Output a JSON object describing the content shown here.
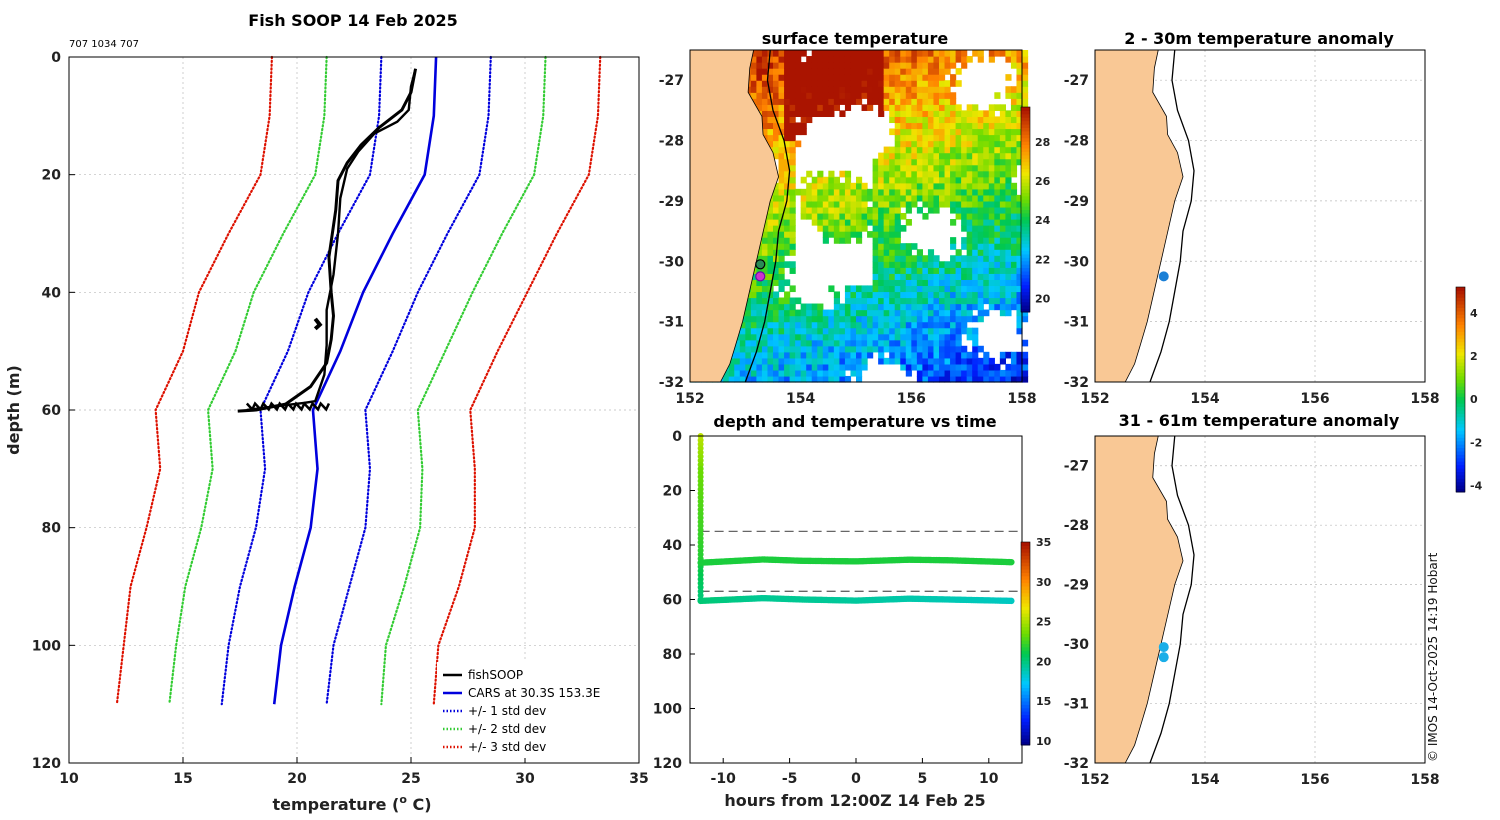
{
  "figure": {
    "title": "Fish SOOP 14 Feb 2025",
    "id_text": "707 1034 707",
    "copyright": "© IMOS 14-Oct-2025 14:19 Hobart"
  },
  "colors": {
    "land": "#f9c895",
    "black": "#000000",
    "blue": "#0000dd",
    "green": "#33cc33",
    "red": "#dd1100",
    "grid": "#cccccc"
  },
  "chart_data": [
    {
      "id": "profile",
      "type": "line",
      "title": "Fish SOOP 14 Feb 2025",
      "xlabel": "temperature (°C)",
      "xlabel_main": "temperature (",
      "xlabel_sup": "o",
      "xlabel_end": " C)",
      "ylabel": "depth (m)",
      "xlim": [
        10,
        35
      ],
      "ylim": [
        0,
        120
      ],
      "y_reversed": true,
      "xticks": [
        10,
        15,
        20,
        25,
        30,
        35
      ],
      "yticks": [
        0,
        20,
        40,
        60,
        80,
        100,
        120
      ],
      "grid": true,
      "legend_position": "bottom-right",
      "legend": [
        {
          "label": "fishSOOP",
          "color": "#000000",
          "style": "solid"
        },
        {
          "label": "CARS at 30.3S 153.3E",
          "color": "#0000dd",
          "style": "solid"
        },
        {
          "label": "+/- 1 std dev",
          "color": "#0000dd",
          "style": "dotted"
        },
        {
          "label": "+/- 2 std dev",
          "color": "#33cc33",
          "style": "dotted"
        },
        {
          "label": "+/- 3 std dev",
          "color": "#dd1100",
          "style": "dotted"
        }
      ],
      "depths": [
        0,
        10,
        20,
        30,
        40,
        50,
        60,
        70,
        80,
        90,
        100,
        110
      ],
      "cars_mean": [
        26.1,
        26.0,
        25.6,
        24.2,
        22.9,
        21.9,
        20.7,
        20.9,
        20.6,
        19.9,
        19.3,
        19.0
      ],
      "series": [
        {
          "name": "CARS mean",
          "color": "#0000dd",
          "style": "solid",
          "values": [
            26.1,
            26.0,
            25.6,
            24.2,
            22.9,
            21.9,
            20.7,
            20.9,
            20.6,
            19.9,
            19.3,
            19.0
          ]
        },
        {
          "name": "-1 std",
          "color": "#0000dd",
          "style": "dotted",
          "values": [
            23.7,
            23.6,
            23.2,
            21.8,
            20.5,
            19.6,
            18.4,
            18.6,
            18.2,
            17.5,
            17.0,
            16.7
          ]
        },
        {
          "name": "+1 std",
          "color": "#0000dd",
          "style": "dotted",
          "values": [
            28.5,
            28.4,
            28.0,
            26.6,
            25.3,
            24.2,
            23.0,
            23.2,
            23.0,
            22.3,
            21.6,
            21.3
          ]
        },
        {
          "name": "-2 std",
          "color": "#33cc33",
          "style": "dotted",
          "values": [
            21.3,
            21.2,
            20.8,
            19.4,
            18.1,
            17.3,
            16.1,
            16.3,
            15.8,
            15.1,
            14.7,
            14.4
          ]
        },
        {
          "name": "+2 std",
          "color": "#33cc33",
          "style": "dotted",
          "values": [
            30.9,
            30.8,
            30.4,
            29.0,
            27.7,
            26.5,
            25.3,
            25.5,
            25.4,
            24.7,
            23.9,
            23.7
          ]
        },
        {
          "name": "-3 std",
          "color": "#dd1100",
          "style": "dotted",
          "values": [
            18.9,
            18.8,
            18.4,
            17.0,
            15.7,
            15.0,
            13.8,
            14.0,
            13.4,
            12.7,
            12.4,
            12.1
          ]
        },
        {
          "name": "+3 std",
          "color": "#dd1100",
          "style": "dotted",
          "values": [
            33.3,
            33.2,
            32.8,
            31.4,
            30.1,
            28.8,
            27.6,
            27.8,
            27.8,
            27.1,
            26.2,
            26.0
          ]
        }
      ],
      "fishsoop_down": [
        [
          25.2,
          2
        ],
        [
          25.1,
          4
        ],
        [
          25.0,
          6
        ],
        [
          24.6,
          9
        ],
        [
          23.6,
          12
        ],
        [
          22.8,
          15
        ],
        [
          22.2,
          18
        ],
        [
          21.8,
          21
        ],
        [
          21.7,
          26
        ],
        [
          21.4,
          34
        ],
        [
          21.5,
          40
        ],
        [
          21.6,
          44
        ],
        [
          21.5,
          48
        ],
        [
          21.3,
          52
        ],
        [
          20.6,
          56
        ],
        [
          19.5,
          59
        ],
        [
          18.2,
          60
        ],
        [
          17.4,
          60.2
        ]
      ],
      "fishsoop_up": [
        [
          17.8,
          60
        ],
        [
          19.2,
          59.3
        ],
        [
          20.3,
          58.8
        ],
        [
          20.8,
          58.5
        ],
        [
          21.2,
          54
        ],
        [
          21.3,
          49
        ],
        [
          21.3,
          43
        ],
        [
          21.6,
          37
        ],
        [
          21.8,
          30
        ],
        [
          21.9,
          24
        ],
        [
          22.2,
          19
        ],
        [
          22.7,
          16
        ],
        [
          23.4,
          13
        ],
        [
          24.4,
          11
        ],
        [
          24.9,
          9
        ],
        [
          25.0,
          5
        ],
        [
          25.2,
          2
        ]
      ],
      "fishsoop_blob": [
        [
          20.8,
          44.5
        ],
        [
          21.0,
          45.5
        ],
        [
          20.8,
          46.2
        ]
      ]
    },
    {
      "id": "sst_map",
      "type": "heatmap",
      "title": "surface temperature",
      "xlim": [
        152,
        158
      ],
      "ylim": [
        -32,
        -26.5
      ],
      "xticks": [
        152,
        154,
        156,
        158
      ],
      "yticks": [
        -27,
        -28,
        -29,
        -30,
        -31,
        -32
      ],
      "grid": false,
      "colorbar": {
        "min": 19.3,
        "max": 29.8,
        "ticks": [
          20,
          22,
          24,
          26,
          28
        ]
      },
      "markers": [
        {
          "lon": 153.27,
          "lat": -30.05,
          "color": "#2a8a55",
          "stroke": "#000000"
        },
        {
          "lon": 153.27,
          "lat": -30.25,
          "color": "#cc33cc",
          "stroke": "#6a0dad"
        }
      ]
    },
    {
      "id": "anom_upper",
      "type": "scatter",
      "title": "2 - 30m temperature anomaly",
      "xlim": [
        152,
        158
      ],
      "ylim": [
        -32,
        -26.5
      ],
      "xticks": [
        152,
        154,
        156,
        158
      ],
      "yticks": [
        -27,
        -28,
        -29,
        -30,
        -31,
        -32
      ],
      "grid": true,
      "markers": [
        {
          "lon": 153.25,
          "lat": -30.25,
          "anomaly": -0.8,
          "color": "#1a7fd6"
        }
      ]
    },
    {
      "id": "anom_lower",
      "type": "scatter",
      "title": "31 - 61m temperature anomaly",
      "xlim": [
        152,
        158
      ],
      "ylim": [
        -32,
        -26.5
      ],
      "xticks": [
        152,
        154,
        156,
        158
      ],
      "yticks": [
        -27,
        -28,
        -29,
        -30,
        -31,
        -32
      ],
      "grid": true,
      "markers": [
        {
          "lon": 153.25,
          "lat": -30.05,
          "anomaly": -1.2,
          "color": "#1aaee8"
        },
        {
          "lon": 153.25,
          "lat": -30.22,
          "anomaly": -1.2,
          "color": "#1aaee8"
        }
      ]
    },
    {
      "id": "time_series",
      "type": "scatter",
      "title": "depth and temperature vs time",
      "xlabel": "hours from 12:00Z 14 Feb 25",
      "ylabel": "",
      "xlim": [
        -12.5,
        12.5
      ],
      "ylim": [
        0,
        120
      ],
      "y_reversed": true,
      "xticks": [
        -10,
        -5,
        0,
        5,
        10
      ],
      "yticks": [
        0,
        20,
        40,
        60,
        80,
        100,
        120
      ],
      "grid": false,
      "dashed_depths": [
        35,
        57
      ],
      "descent": {
        "hour": -11.7,
        "depth_from": 0,
        "depth_to": 61
      },
      "upper_line": {
        "hours": [
          -11.7,
          -7,
          -4,
          0,
          4,
          7,
          11.7
        ],
        "depths": [
          46.5,
          45.3,
          45.8,
          46.0,
          45.4,
          45.6,
          46.3
        ],
        "temp": 21.6
      },
      "lower_line": {
        "hours": [
          -11.7,
          -7,
          -4,
          0,
          4,
          7,
          11.7
        ],
        "depths": [
          60.5,
          59.5,
          60.0,
          60.4,
          59.7,
          60.0,
          60.5
        ],
        "temps": [
          20.2,
          19.5,
          19.5,
          19.3,
          19.0,
          18.8,
          18.5
        ]
      },
      "colorbar": {
        "min": 9.5,
        "max": 35,
        "ticks": [
          10,
          15,
          20,
          25,
          30,
          35
        ]
      }
    },
    {
      "id": "anomaly_colorbar",
      "type": "heatmap",
      "colorbar": {
        "min": -4.3,
        "max": 5.2,
        "ticks": [
          -4,
          -2,
          0,
          2,
          4
        ]
      }
    }
  ]
}
